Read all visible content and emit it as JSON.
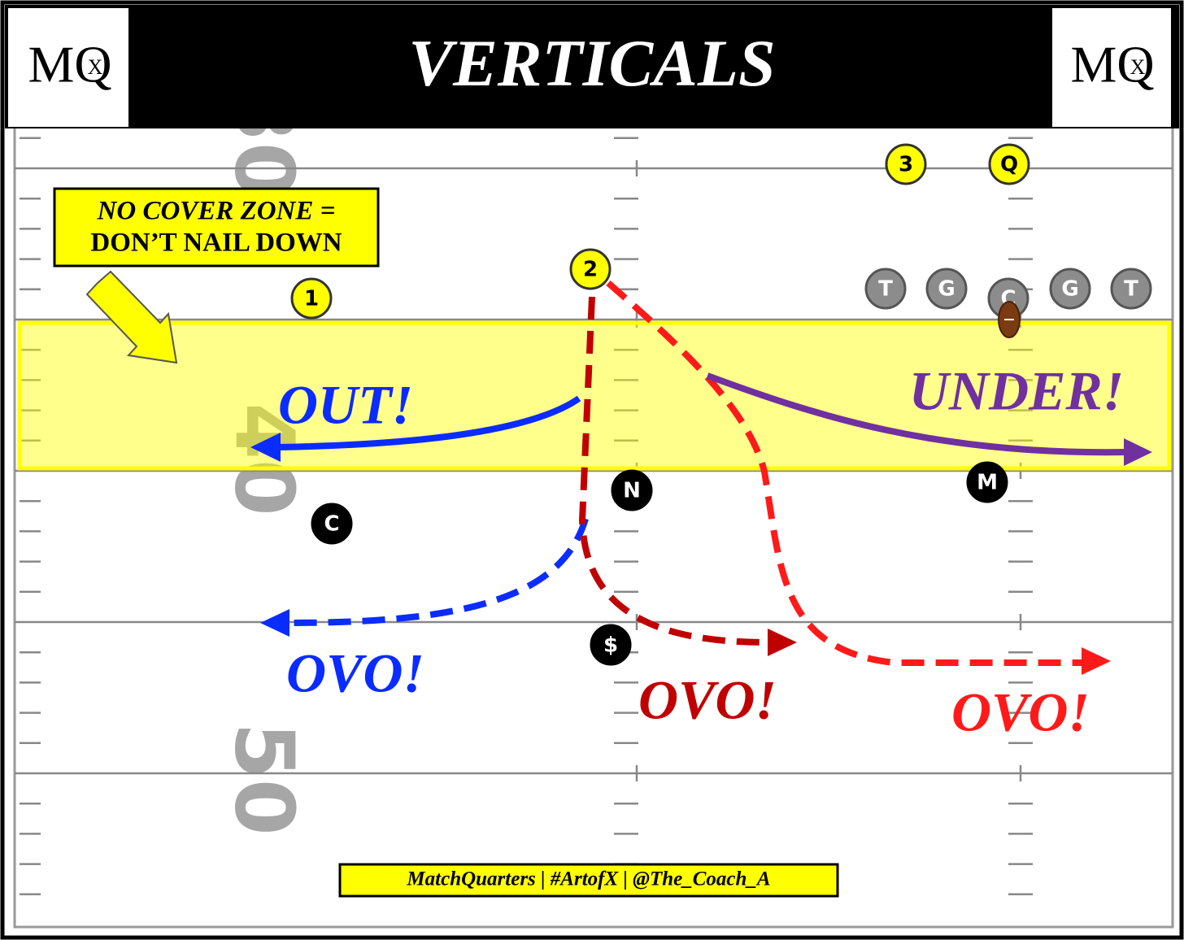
{
  "header": {
    "title": "VERTICALS",
    "logos": [
      {
        "letters": "MQ",
        "mark": "X"
      },
      {
        "letters": "MQ",
        "mark": "X"
      }
    ]
  },
  "callout": {
    "lines": [
      "NO COVER ZONE =",
      "DON’T NAIL DOWN"
    ]
  },
  "field": {
    "yard_numbers": [
      "30",
      "40",
      "50"
    ]
  },
  "offense": {
    "receivers": [
      "1",
      "2",
      "3"
    ],
    "quarterback": "Q",
    "linemen": [
      "T",
      "G",
      "C",
      "G",
      "T"
    ]
  },
  "defense": [
    "C",
    "N",
    "M",
    "$"
  ],
  "routes": [
    "OUT!",
    "UNDER!",
    "OVO!",
    "OVO!",
    "OVO!"
  ],
  "footer": "MatchQuarters | #ArtofX | @The_Coach_A"
}
